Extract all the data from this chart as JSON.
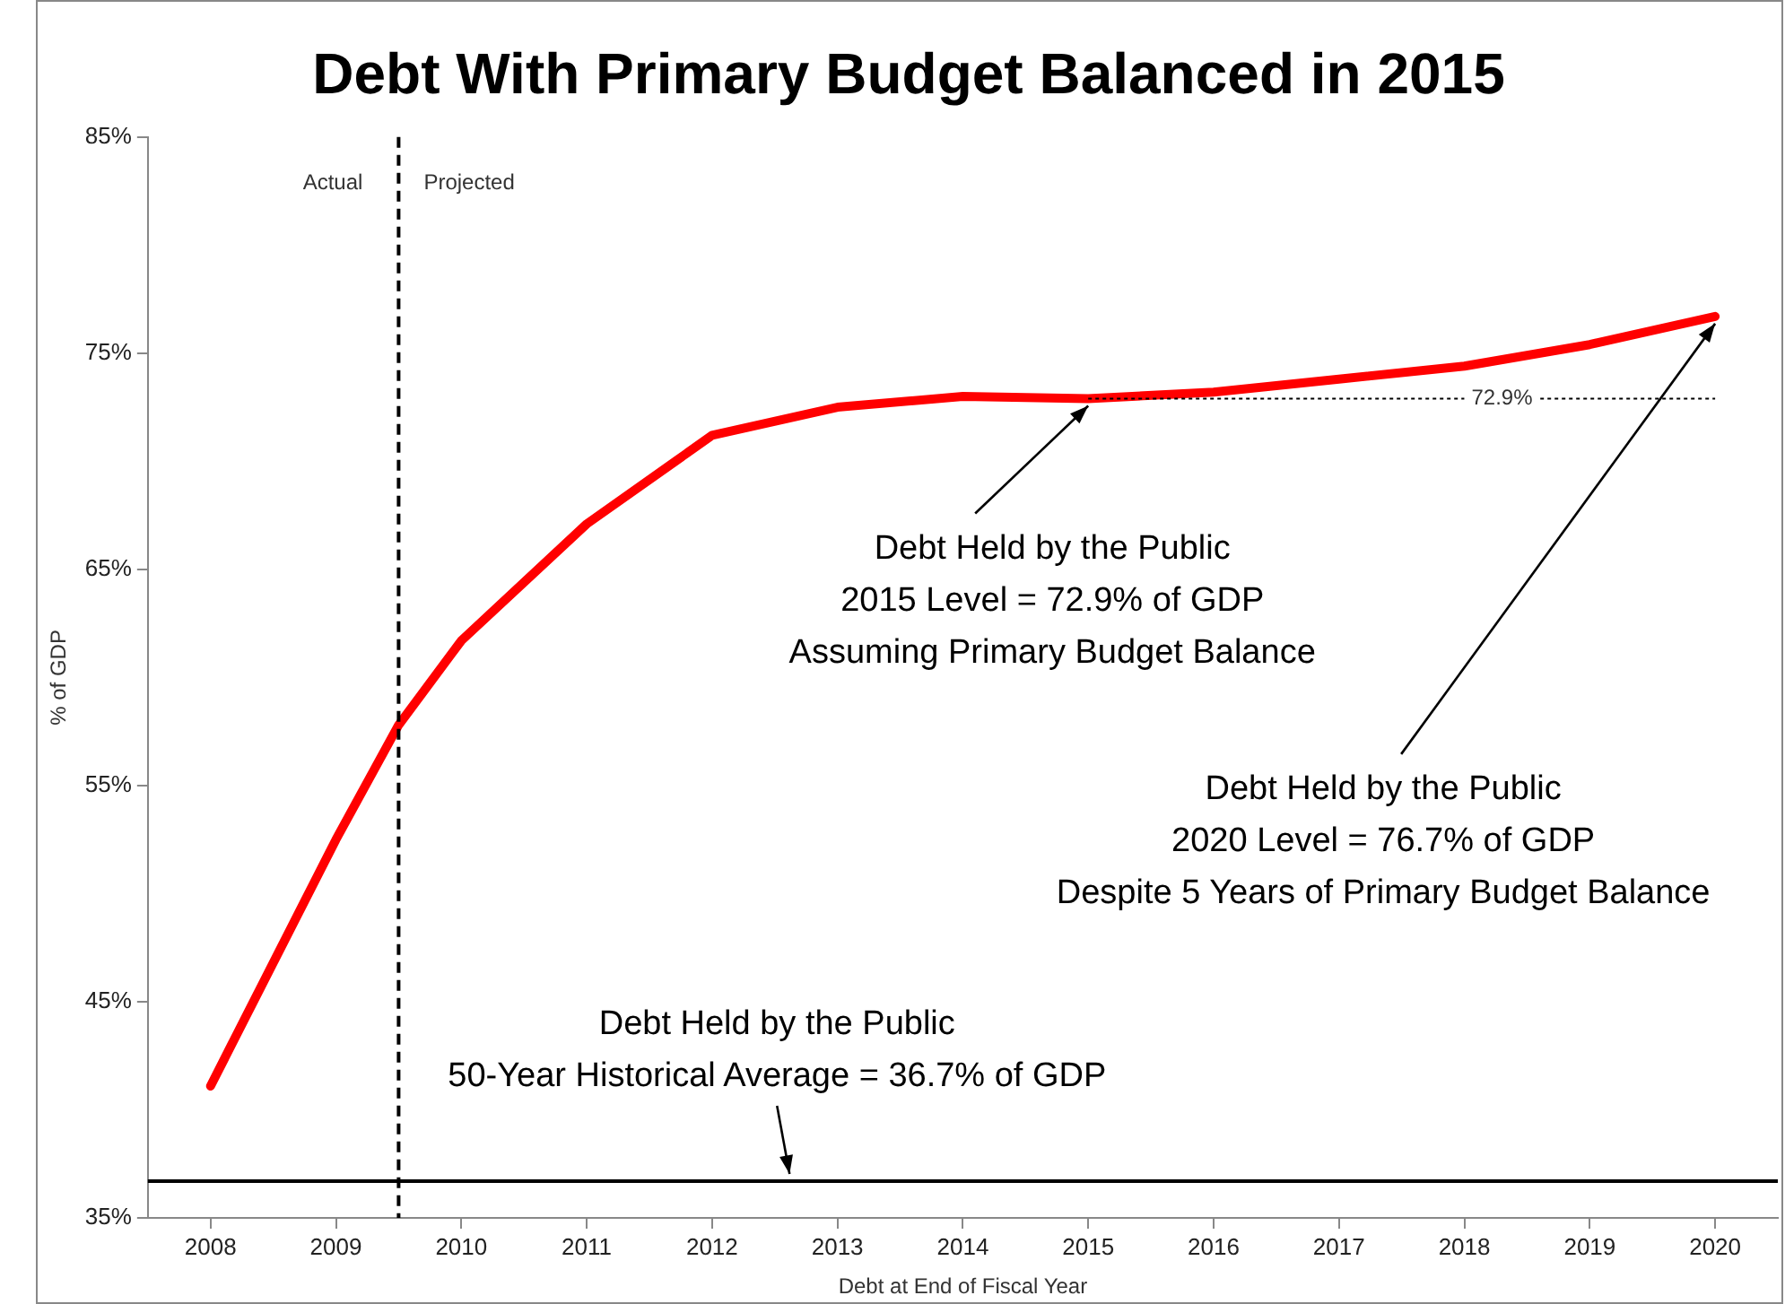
{
  "chart_data": {
    "type": "line",
    "title": "Debt With Primary Budget Balanced in 2015",
    "xlabel": "Debt at End of Fiscal Year",
    "ylabel": "% of GDP",
    "xlim": [
      2007.5,
      2020.5
    ],
    "xticks": [
      2008,
      2009,
      2010,
      2011,
      2012,
      2013,
      2014,
      2015,
      2016,
      2017,
      2018,
      2019,
      2020
    ],
    "ylim": [
      35,
      85
    ],
    "yticks": [
      {
        "value": 35,
        "label": "35%"
      },
      {
        "value": 45,
        "label": "45%"
      },
      {
        "value": 55,
        "label": "55%"
      },
      {
        "value": 65,
        "label": "65%"
      },
      {
        "value": 75,
        "label": "75%"
      },
      {
        "value": 85,
        "label": "85%"
      }
    ],
    "series": [
      {
        "color": "#ff0000",
        "x": [
          2008,
          2009,
          2009.5,
          2010,
          2011,
          2012,
          2013,
          2014,
          2015,
          2016,
          2017,
          2018,
          2019,
          2020
        ],
        "values": [
          41.1,
          52.5,
          57.8,
          61.7,
          67.1,
          71.2,
          72.5,
          73.0,
          72.9,
          73.2,
          73.8,
          74.4,
          75.4,
          76.7
        ]
      },
      {
        "color": "#000000",
        "line_style": "dotted",
        "x": [
          2015,
          2020
        ],
        "values": [
          72.9,
          72.9
        ]
      }
    ],
    "ref_lines": [
      {
        "axis": "x",
        "value": 2009.5,
        "color": "#000000",
        "line_style": "dashed"
      },
      {
        "axis": "y",
        "value": 36.7,
        "color": "#000000",
        "line_style": "solid",
        "label": "Debt Held by the Public\n50-Year Historical Average = 36.7% of GDP"
      }
    ],
    "annotations": [
      {
        "text": "Debt Held by the Public\n2015 Level = 72.9% of GDP\nAssuming Primary Budget Balance",
        "x": 2015,
        "y": 72.9
      },
      {
        "text": "Debt Held by the Public\n2020 Level = 76.7% of GDP\nDespite 5 Years of Primary Budget Balance",
        "x": 2020,
        "y": 76.7
      },
      "Actual",
      "Projected",
      {
        "text": "72.9%",
        "x": 2018.3,
        "y": 72.9
      }
    ],
    "grid": false,
    "legend": false,
    "marker": "none",
    "line_style": "solid"
  }
}
